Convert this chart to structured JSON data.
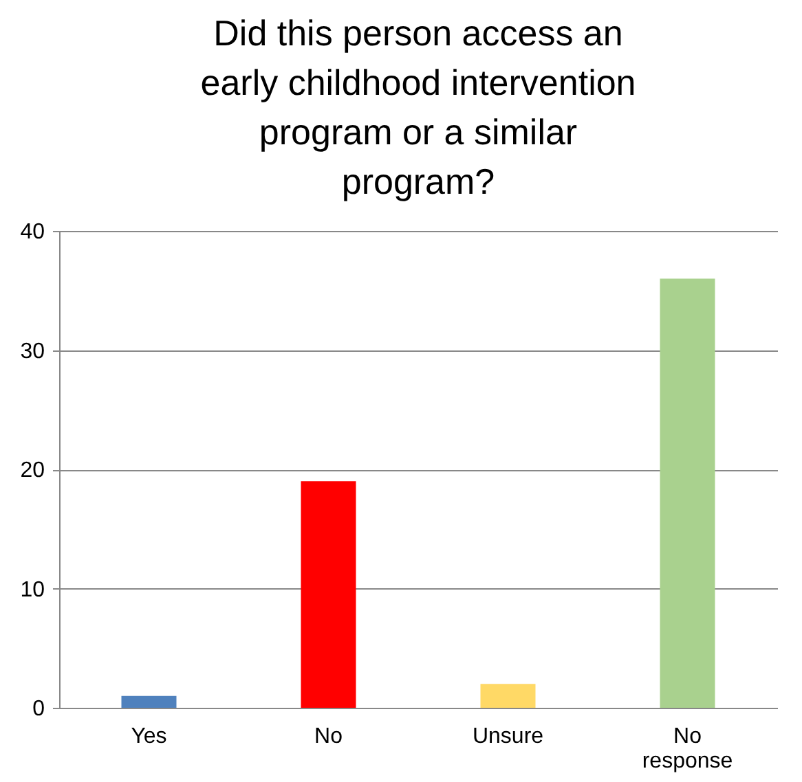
{
  "chart_data": {
    "type": "bar",
    "title": "Did this person access an early childhood intervention program or a similar program?",
    "categories": [
      "Yes",
      "No",
      "Unsure",
      "No response"
    ],
    "values": [
      1,
      19,
      2,
      36
    ],
    "colors": [
      "#4f81bd",
      "#ff0000",
      "#ffd966",
      "#a9d18e"
    ],
    "ylim": [
      0,
      40
    ],
    "yticks": [
      0,
      10,
      20,
      30,
      40
    ],
    "grid": "y"
  }
}
